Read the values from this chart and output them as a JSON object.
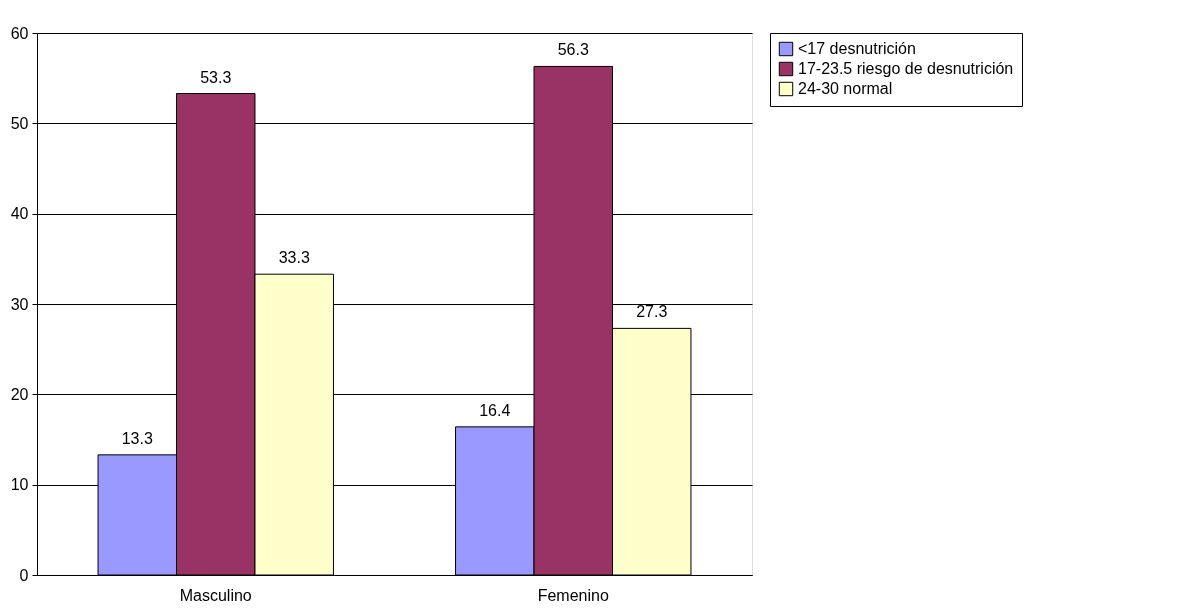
{
  "chart_data": {
    "type": "bar",
    "categories": [
      "Masculino",
      "Femenino"
    ],
    "series": [
      {
        "name": "<17 desnutrición",
        "color": "#9999ff",
        "values": [
          13.3,
          16.4
        ]
      },
      {
        "name": "17-23.5 riesgo de desnutrición",
        "color": "#993366",
        "values": [
          53.3,
          56.3
        ]
      },
      {
        "name": "24-30 normal",
        "color": "#ffffcc",
        "values": [
          33.3,
          27.3
        ]
      }
    ],
    "ylim": [
      0,
      60
    ],
    "yticks": [
      0,
      10,
      20,
      30,
      40,
      50,
      60
    ],
    "grid": "y",
    "legend": "right",
    "data_labels": true
  }
}
